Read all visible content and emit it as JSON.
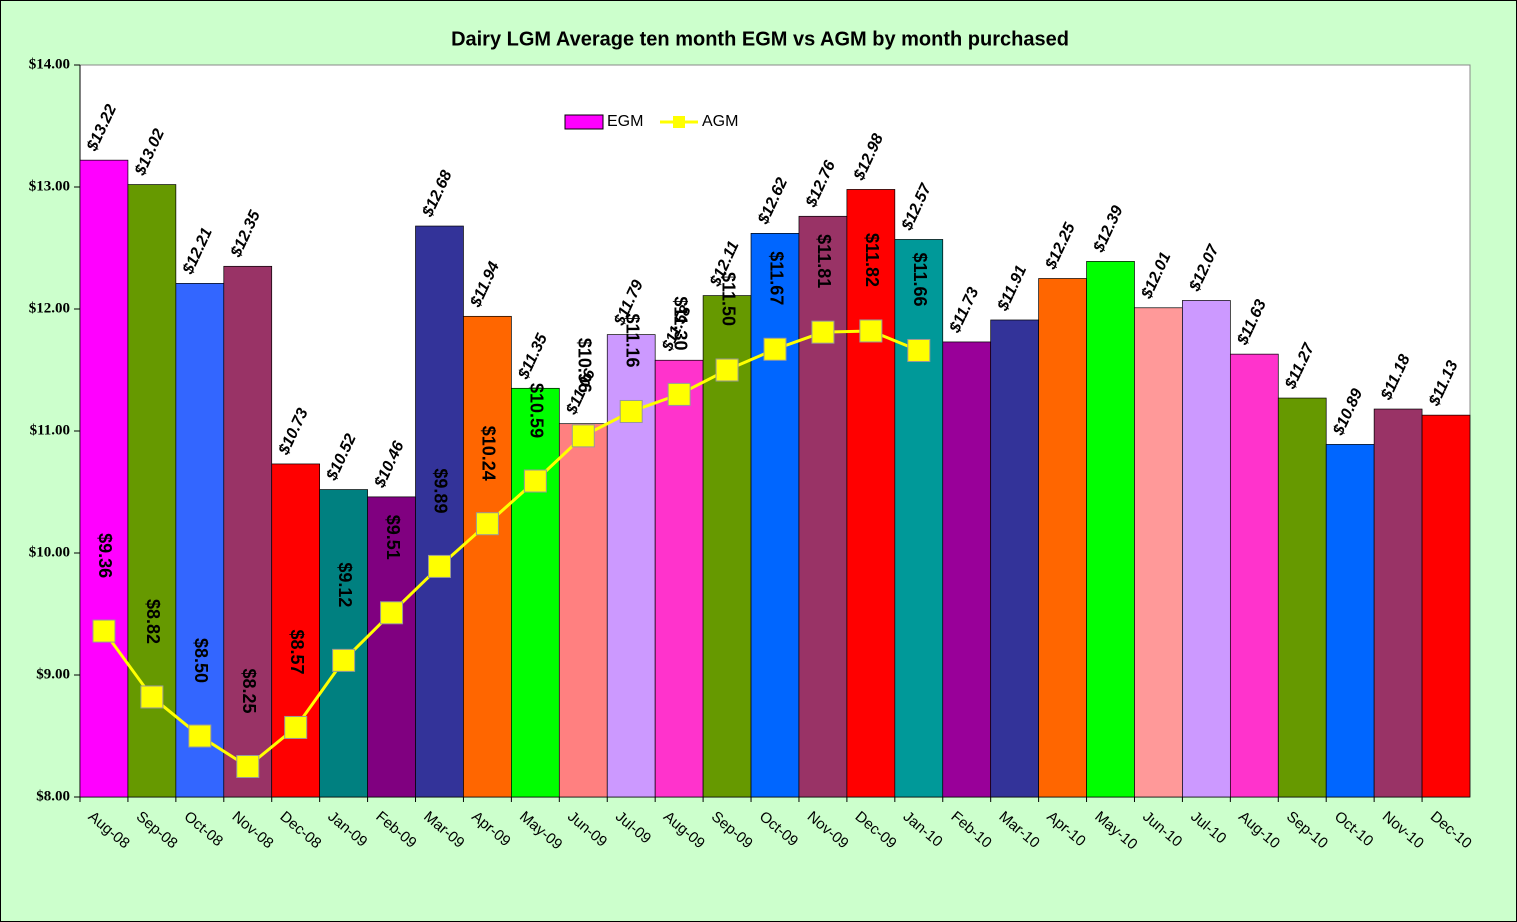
{
  "chart_data": {
    "type": "bar_line",
    "title": "Dairy LGM Average ten month  EGM vs  AGM by month purchased",
    "categories": [
      "Aug-08",
      "Sep-08",
      "Oct-08",
      "Nov-08",
      "Dec-08",
      "Jan-09",
      "Feb-09",
      "Mar-09",
      "Apr-09",
      "May-09",
      "Jun-09",
      "Jul-09",
      "Aug-09",
      "Sep-09",
      "Oct-09",
      "Nov-09",
      "Dec-09",
      "Jan-10",
      "Feb-10",
      "Mar-10",
      "Apr-10",
      "May-10",
      "Jun-10",
      "Jul-10",
      "Aug-10",
      "Sep-10",
      "Oct-10",
      "Nov-10",
      "Dec-10"
    ],
    "series": [
      {
        "name": "EGM",
        "type": "bar",
        "color": "#ff00ff",
        "colors": [
          "#ff00ff",
          "#669900",
          "#3366ff",
          "#993366",
          "#ff0000",
          "#008080",
          "#800080",
          "#333399",
          "#ff6600",
          "#00ff00",
          "#ff8080",
          "#cc99ff",
          "#ff33cc",
          "#669900",
          "#0066ff",
          "#993366",
          "#ff0000",
          "#009999",
          "#990099",
          "#333399",
          "#ff6600",
          "#00ff00",
          "#ff9999",
          "#cc99ff",
          "#ff33cc",
          "#669900",
          "#0066ff",
          "#993366",
          "#ff0000"
        ],
        "values": [
          13.22,
          13.02,
          12.21,
          12.35,
          10.73,
          10.52,
          10.46,
          12.68,
          11.94,
          11.35,
          11.06,
          11.79,
          11.58,
          12.11,
          12.62,
          12.76,
          12.98,
          12.57,
          11.73,
          11.91,
          12.25,
          12.39,
          12.01,
          12.07,
          11.63,
          11.27,
          10.89,
          11.18,
          11.13
        ],
        "value_labels": [
          "$13.22",
          "$13.02",
          "$12.21",
          "$12.35",
          "$10.73",
          "$10.52",
          "$10.46",
          "$12.68",
          "$11.94",
          "$11.35",
          "$11.06",
          "$11.79",
          "$11.58",
          "$12.11",
          "$12.62",
          "$12.76",
          "$12.98",
          "$12.57",
          "$11.73",
          "$11.91",
          "$12.25",
          "$12.39",
          "$12.01",
          "$12.07",
          "$11.63",
          "$11.27",
          "$10.89",
          "$11.18",
          "$11.13"
        ]
      },
      {
        "name": "AGM",
        "type": "line",
        "color": "#ffff00",
        "values": [
          9.36,
          8.82,
          8.5,
          8.25,
          8.57,
          9.12,
          9.51,
          9.89,
          10.24,
          10.59,
          10.96,
          11.16,
          11.3,
          11.5,
          11.67,
          11.81,
          11.82,
          11.66,
          null,
          null,
          null,
          null,
          null,
          null,
          null,
          null,
          null,
          null,
          null
        ],
        "value_labels": [
          "$9.36",
          "$8.82",
          "$8.50",
          "$8.25",
          "$8.57",
          "$9.12",
          "$9.51",
          "$9.89",
          "$10.24",
          "$10.59",
          "$10.96",
          "$11.16",
          "$11.30",
          "$11.50",
          "$11.67",
          "$11.81",
          "$11.82",
          "$11.66",
          null,
          null,
          null,
          null,
          null,
          null,
          null,
          null,
          null,
          null,
          null
        ]
      }
    ],
    "ylim": [
      8,
      14
    ],
    "yticks": [
      {
        "value": 8,
        "label": "$8.00"
      },
      {
        "value": 9,
        "label": "$9.00"
      },
      {
        "value": 10,
        "label": "$10.00"
      },
      {
        "value": 11,
        "label": "$11.00"
      },
      {
        "value": 12,
        "label": "$12.00"
      },
      {
        "value": 13,
        "label": "$13.00"
      },
      {
        "value": 14,
        "label": "$14.00"
      }
    ],
    "grid": false,
    "legend": "top"
  }
}
